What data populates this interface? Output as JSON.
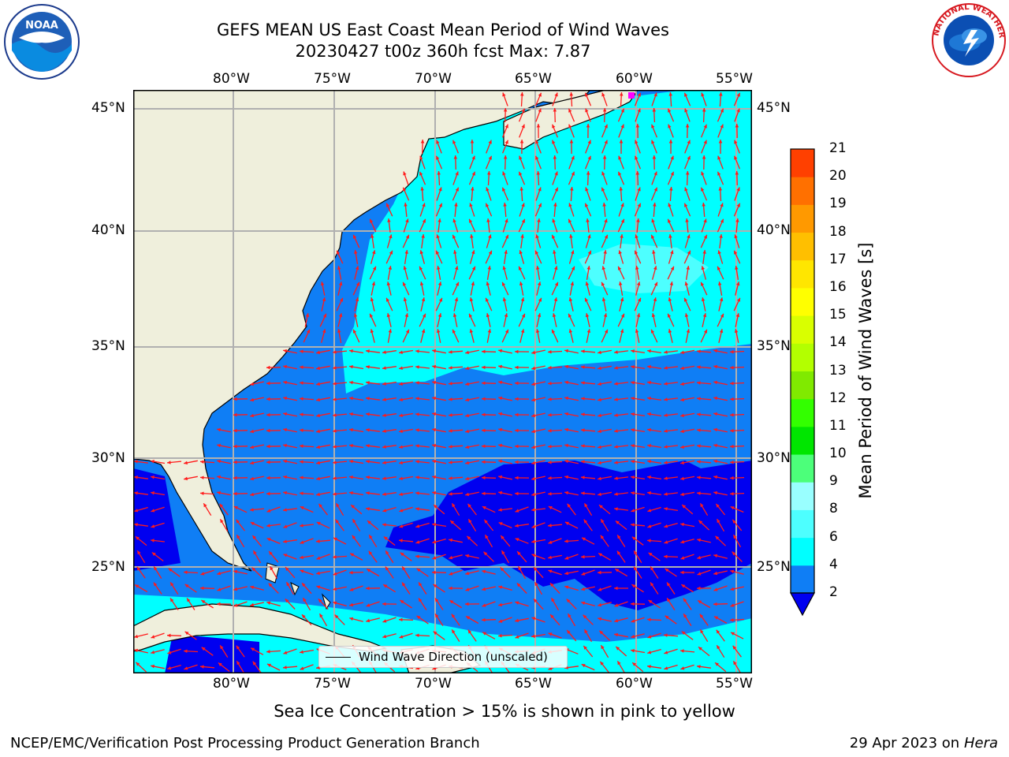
{
  "header": {
    "title_line1": "GEFS MEAN US East Coast Mean Period of Wind Waves",
    "title_line2": "20230427 t00z 360h fcst   Max: 7.87"
  },
  "logos": {
    "left": {
      "name": "noaa-logo",
      "text": "NOAA"
    },
    "right": {
      "name": "national-weather-service-logo",
      "text": "NATIONAL WEATHER SERVICE"
    }
  },
  "map": {
    "lon_ticks": [
      "80°W",
      "75°W",
      "70°W",
      "65°W",
      "60°W",
      "55°W"
    ],
    "lat_ticks_left": [
      "45°N",
      "40°N",
      "35°N",
      "30°N",
      "25°N"
    ],
    "lat_ticks_right": [
      "45°N",
      "40°N",
      "35°N",
      "30°N",
      "25°N"
    ],
    "legend_label": "Wind Wave Direction (unscaled)",
    "colors": {
      "land": "#efefdc",
      "band_2_4": "#0f7ef5",
      "band_4_6": "#00ffff",
      "band_6_8": "#4dffff",
      "below_2": "#0000f0",
      "arrow": "#ff1a1a",
      "grid": "#b0b0b0"
    }
  },
  "colorbar": {
    "label": "Mean Period of Wind Waves [s]",
    "ticks": [
      "2",
      "4",
      "6",
      "8",
      "9",
      "10",
      "11",
      "12",
      "13",
      "14",
      "15",
      "16",
      "17",
      "18",
      "19",
      "20",
      "21"
    ],
    "colors": [
      "#0f7ef5",
      "#00ffff",
      "#4dffff",
      "#99ffff",
      "#4cff7a",
      "#00e600",
      "#33ff00",
      "#80ea00",
      "#b3ff00",
      "#d9ff00",
      "#ffff00",
      "#ffe600",
      "#ffbf00",
      "#ff9900",
      "#ff7000",
      "#ff4000",
      "#ff0000"
    ],
    "extend_color": "#0000f0"
  },
  "footer": {
    "note": "Sea Ice Concentration > 15% is shown in pink to yellow",
    "left": "NCEP/EMC/Verification Post Processing Product Generation Branch",
    "right_date": "29 Apr 2023 on ",
    "right_host": "Hera"
  }
}
